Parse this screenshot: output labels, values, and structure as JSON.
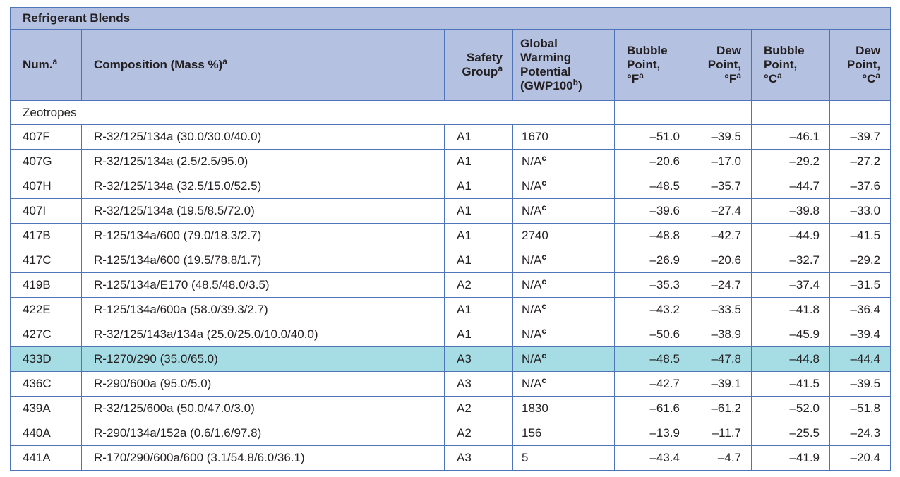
{
  "table": {
    "title": "Refrigerant Blends",
    "headers": {
      "num": "Num.",
      "num_sup": "a",
      "composition": "Composition (Mass %)",
      "composition_sup": "a",
      "safety_line1": "Safety",
      "safety_line2": "Group",
      "safety_sup": "a",
      "gwp_line1": "Global",
      "gwp_line2": "Warming",
      "gwp_line3": "Potential",
      "gwp_line4": "(GWP100",
      "gwp_sup": "b",
      "gwp_close": ")",
      "bubble_f_line1": "Bubble",
      "bubble_f_line2": "Point,",
      "bubble_f_line3": "°F",
      "bubble_f_sup": "a",
      "dew_f_line1": "Dew",
      "dew_f_line2": "Point,",
      "dew_f_line3": "°F",
      "dew_f_sup": "a",
      "bubble_c_line1": "Bubble",
      "bubble_c_line2": "Point,",
      "bubble_c_line3": "°C",
      "bubble_c_sup": "a",
      "dew_c_line1": "Dew",
      "dew_c_line2": "Point,",
      "dew_c_line3": "°C",
      "dew_c_sup": "a"
    },
    "section": "Zeotropes",
    "highlight_color": "#a6dce4",
    "header_color": "#b4c1e1",
    "rows": [
      {
        "num": "407F",
        "composition": "R-32/125/134a (30.0/30.0/40.0)",
        "safety": "A1",
        "gwp": "1670",
        "gwp_sup": "",
        "bubble_f": "–51.0",
        "dew_f": "–39.5",
        "bubble_c": "–46.1",
        "dew_c": "–39.7"
      },
      {
        "num": "407G",
        "composition": "R-32/125/134a (2.5/2.5/95.0)",
        "safety": "A1",
        "gwp": "N/A",
        "gwp_sup": "c",
        "bubble_f": "–20.6",
        "dew_f": "–17.0",
        "bubble_c": "–29.2",
        "dew_c": "–27.2"
      },
      {
        "num": "407H",
        "composition": "R-32/125/134a (32.5/15.0/52.5)",
        "safety": "A1",
        "gwp": "N/A",
        "gwp_sup": "c",
        "bubble_f": "–48.5",
        "dew_f": "–35.7",
        "bubble_c": "–44.7",
        "dew_c": "–37.6"
      },
      {
        "num": "407I",
        "composition": "R-32/125/134a (19.5/8.5/72.0)",
        "safety": "A1",
        "gwp": "N/A",
        "gwp_sup": "c",
        "bubble_f": "–39.6",
        "dew_f": "–27.4",
        "bubble_c": "–39.8",
        "dew_c": "–33.0"
      },
      {
        "num": "417B",
        "composition": "R-125/134a/600 (79.0/18.3/2.7)",
        "safety": "A1",
        "gwp": "2740",
        "gwp_sup": "",
        "bubble_f": "–48.8",
        "dew_f": "–42.7",
        "bubble_c": "–44.9",
        "dew_c": "–41.5"
      },
      {
        "num": "417C",
        "composition": "R-125/134a/600 (19.5/78.8/1.7)",
        "safety": "A1",
        "gwp": "N/A",
        "gwp_sup": "c",
        "bubble_f": "–26.9",
        "dew_f": "–20.6",
        "bubble_c": "–32.7",
        "dew_c": "–29.2"
      },
      {
        "num": "419B",
        "composition": "R-125/134a/E170 (48.5/48.0/3.5)",
        "safety": "A2",
        "gwp": "N/A",
        "gwp_sup": "c",
        "bubble_f": "–35.3",
        "dew_f": "–24.7",
        "bubble_c": "–37.4",
        "dew_c": "–31.5"
      },
      {
        "num": "422E",
        "composition": "R-125/134a/600a (58.0/39.3/2.7)",
        "safety": "A1",
        "gwp": "N/A",
        "gwp_sup": "c",
        "bubble_f": "–43.2",
        "dew_f": "–33.5",
        "bubble_c": "–41.8",
        "dew_c": "–36.4"
      },
      {
        "num": "427C",
        "composition": "R-32/125/143a/134a (25.0/25.0/10.0/40.0)",
        "safety": "A1",
        "gwp": "N/A",
        "gwp_sup": "c",
        "bubble_f": "–50.6",
        "dew_f": "–38.9",
        "bubble_c": "–45.9",
        "dew_c": "–39.4"
      },
      {
        "num": "433D",
        "composition": "R-1270/290 (35.0/65.0)",
        "safety": "A3",
        "gwp": "N/A",
        "gwp_sup": "c",
        "bubble_f": "–48.5",
        "dew_f": "–47.8",
        "bubble_c": "–44.8",
        "dew_c": "–44.4",
        "highlighted": true
      },
      {
        "num": "436C",
        "composition": "R-290/600a (95.0/5.0)",
        "safety": "A3",
        "gwp": "N/A",
        "gwp_sup": "c",
        "bubble_f": "–42.7",
        "dew_f": "–39.1",
        "bubble_c": "–41.5",
        "dew_c": "–39.5"
      },
      {
        "num": "439A",
        "composition": "R-32/125/600a (50.0/47.0/3.0)",
        "safety": "A2",
        "gwp": "1830",
        "gwp_sup": "",
        "bubble_f": "–61.6",
        "dew_f": "–61.2",
        "bubble_c": "–52.0",
        "dew_c": "–51.8"
      },
      {
        "num": "440A",
        "composition": "R-290/134a/152a (0.6/1.6/97.8)",
        "safety": "A2",
        "gwp": "156",
        "gwp_sup": "",
        "bubble_f": "–13.9",
        "dew_f": "–11.7",
        "bubble_c": "–25.5",
        "dew_c": "–24.3"
      },
      {
        "num": "441A",
        "composition": "R-170/290/600a/600 (3.1/54.8/6.0/36.1)",
        "safety": "A3",
        "gwp": "5",
        "gwp_sup": "",
        "bubble_f": "–43.4",
        "dew_f": "–4.7",
        "bubble_c": "–41.9",
        "dew_c": "–20.4"
      }
    ]
  }
}
